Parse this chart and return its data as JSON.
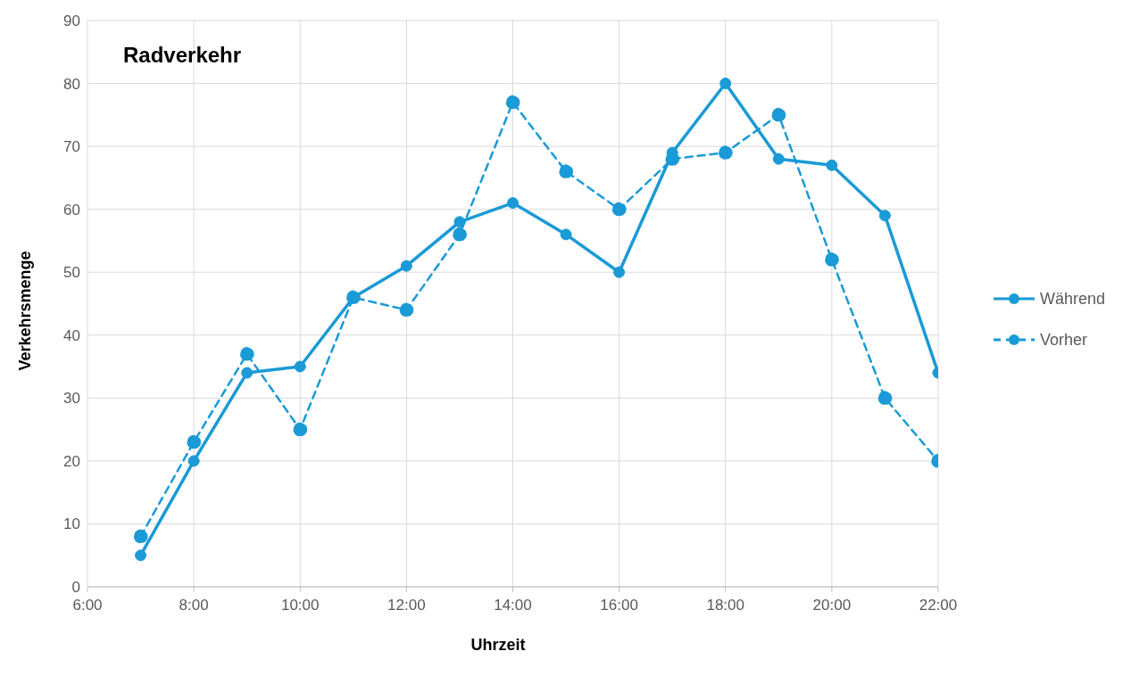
{
  "chart_data": {
    "type": "line",
    "title": "Radverkehr",
    "xlabel": "Uhrzeit",
    "ylabel": "Verkehrsmenge",
    "x": [
      7,
      8,
      9,
      10,
      11,
      12,
      13,
      14,
      15,
      16,
      17,
      18,
      19,
      20,
      21,
      22
    ],
    "series": [
      {
        "name": "Während",
        "color": "#1a9ad6",
        "line_style": "solid",
        "values": [
          5,
          20,
          34,
          35,
          46,
          51,
          58,
          61,
          56,
          50,
          69,
          80,
          68,
          67,
          59,
          34
        ]
      },
      {
        "name": "Vorher",
        "color": "#1a9ad6",
        "line_style": "dashed",
        "values": [
          8,
          23,
          37,
          25,
          46,
          44,
          56,
          77,
          66,
          60,
          68,
          69,
          75,
          52,
          30,
          20
        ]
      }
    ],
    "xlim": [
      6,
      22
    ],
    "xticks": [
      {
        "value": 6,
        "label": "6:00"
      },
      {
        "value": 8,
        "label": "8:00"
      },
      {
        "value": 10,
        "label": "10:00"
      },
      {
        "value": 12,
        "label": "12:00"
      },
      {
        "value": 14,
        "label": "14:00"
      },
      {
        "value": 16,
        "label": "16:00"
      },
      {
        "value": 18,
        "label": "18:00"
      },
      {
        "value": 20,
        "label": "20:00"
      },
      {
        "value": 22,
        "label": "22:00"
      }
    ],
    "ylim": [
      0,
      90
    ],
    "yticks": [
      0,
      10,
      20,
      30,
      40,
      50,
      60,
      70,
      80,
      90
    ],
    "grid": true,
    "legend": "right",
    "marker": "circle"
  }
}
